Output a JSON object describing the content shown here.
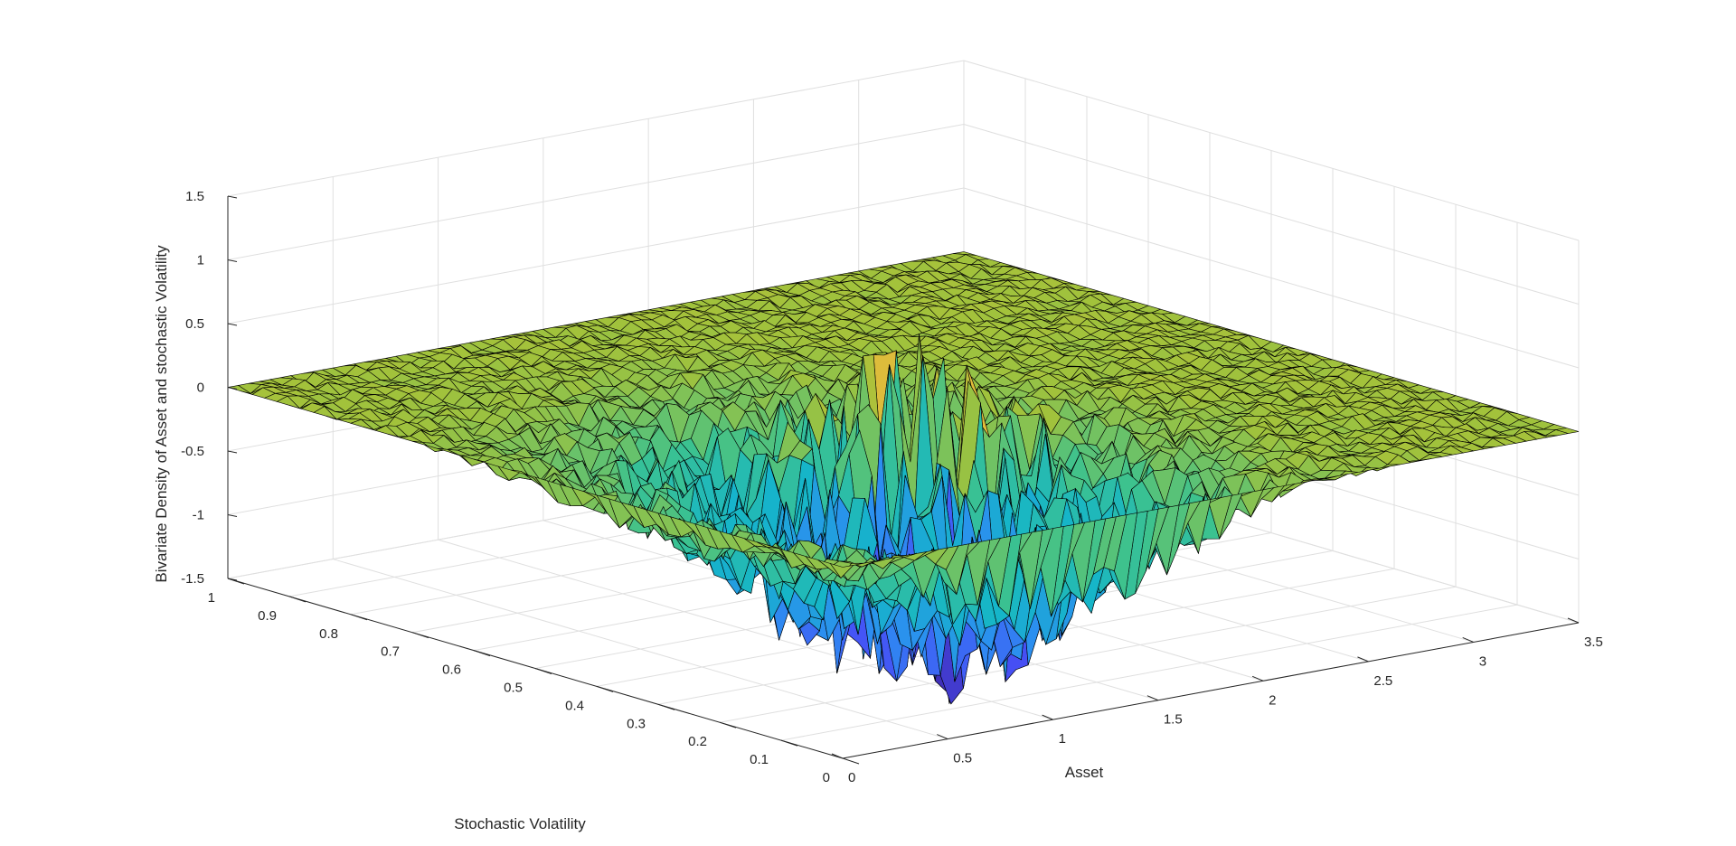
{
  "chart_data": {
    "type": "surface",
    "title": "",
    "xlabel": "Asset",
    "ylabel": "Stochastic Volatility",
    "zlabel": "Bivariate Density of Asset and stochastic Volatility",
    "xlim": [
      0,
      3.5
    ],
    "ylim": [
      0,
      1
    ],
    "zlim": [
      -1.5,
      1.5
    ],
    "x_ticks": [
      "0",
      "0.5",
      "1",
      "1.5",
      "2",
      "2.5",
      "3",
      "3.5"
    ],
    "y_ticks": [
      "0",
      "0.1",
      "0.2",
      "0.3",
      "0.4",
      "0.5",
      "0.6",
      "0.7",
      "0.8",
      "0.9",
      "1"
    ],
    "z_ticks": [
      "-1.5",
      "-1",
      "-0.5",
      "0",
      "0.5",
      "1",
      "1.5"
    ],
    "grid": true,
    "colormap": "parula",
    "colormap_colors": [
      "#3e26a8",
      "#4650f6",
      "#2c8ef1",
      "#15b5c9",
      "#3cc28f",
      "#a2c23b",
      "#f5ba3b",
      "#f9fb15"
    ],
    "edge_color": "#000000",
    "surface_description_points": [
      {
        "x": 0.0,
        "y": 1.0,
        "z": 0.0
      },
      {
        "x": 3.5,
        "y": 1.0,
        "z": 0.0
      },
      {
        "x": 3.5,
        "y": 0.0,
        "z": 0.0
      },
      {
        "x": 0.0,
        "y": 0.0,
        "z": 0.0
      },
      {
        "x": 0.9,
        "y": 0.25,
        "z": -1.45
      },
      {
        "x": 1.2,
        "y": 0.3,
        "z": -1.3
      },
      {
        "x": 1.6,
        "y": 0.45,
        "z": 0.15
      },
      {
        "x": 1.5,
        "y": 0.6,
        "z": -0.35
      }
    ]
  }
}
